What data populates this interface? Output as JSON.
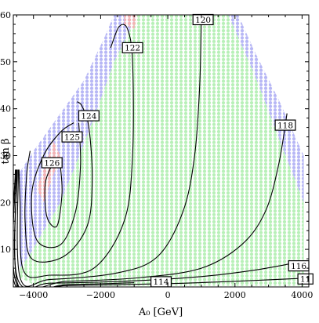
{
  "chart_data": {
    "type": "contour",
    "title": "",
    "xlabel": "A₀ [GeV]",
    "ylabel": "tan β",
    "xlim": [
      -4600,
      4200
    ],
    "ylim": [
      2,
      60
    ],
    "x_ticks": [
      -4000,
      -2000,
      0,
      2000,
      4000
    ],
    "y_ticks": [
      10,
      20,
      30,
      40,
      50,
      60
    ],
    "x_tick_labels": [
      "−4000",
      "−2000",
      "0",
      "2000",
      "4000"
    ],
    "y_tick_labels": [
      "10",
      "20",
      "30",
      "40",
      "50",
      "60"
    ],
    "colors": {
      "allowed": "#b8f0b8",
      "excluded_blue": "#b7b7f5",
      "excluded_red": "#f4b4b4",
      "contour": "#000000"
    },
    "regions": {
      "allowed_band": [
        [
          -4400,
          4
        ],
        [
          -4000,
          2.5
        ],
        [
          -2000,
          2.2
        ],
        [
          0,
          2.2
        ],
        [
          2000,
          2.2
        ],
        [
          4050,
          2.2
        ],
        [
          4050,
          20
        ],
        [
          3400,
          32
        ],
        [
          2600,
          47
        ],
        [
          1800,
          60
        ],
        [
          -900,
          60
        ],
        [
          -1600,
          50
        ],
        [
          -2200,
          38
        ],
        [
          -2800,
          27
        ],
        [
          -3200,
          20
        ],
        [
          -3700,
          14
        ],
        [
          -4100,
          9
        ],
        [
          -4400,
          6
        ]
      ],
      "blue_upper_left": [
        [
          -1600,
          60
        ],
        [
          -900,
          60
        ],
        [
          -1600,
          50
        ],
        [
          -2200,
          38
        ],
        [
          -2800,
          27
        ],
        [
          -3200,
          20
        ],
        [
          -3700,
          14
        ],
        [
          -4100,
          9
        ],
        [
          -4400,
          6
        ],
        [
          -4450,
          26
        ],
        [
          -4000,
          31
        ],
        [
          -3300,
          38
        ],
        [
          -2500,
          46
        ],
        [
          -1900,
          55
        ]
      ],
      "blue_right": [
        [
          1800,
          60
        ],
        [
          2600,
          47
        ],
        [
          3400,
          32
        ],
        [
          4050,
          20
        ],
        [
          4050,
          30
        ],
        [
          3300,
          42
        ],
        [
          2600,
          52
        ],
        [
          2100,
          60
        ]
      ],
      "red_top": [
        [
          -1300,
          60
        ],
        [
          -900,
          60
        ],
        [
          -1000,
          57
        ],
        [
          -1300,
          58
        ]
      ],
      "red_left": [
        [
          -3400,
          33
        ],
        [
          -3200,
          30
        ],
        [
          -3700,
          20
        ],
        [
          -3900,
          23
        ]
      ]
    },
    "contours": [
      {
        "label": "126",
        "label_pos": [
          -3450,
          28.5
        ],
        "points": [
          [
            -3200,
            28
          ],
          [
            -3150,
            22
          ],
          [
            -3300,
            15
          ],
          [
            -3600,
            17
          ],
          [
            -3650,
            24
          ],
          [
            -3450,
            28
          ]
        ]
      },
      {
        "label": "125",
        "label_pos": [
          -2850,
          34
        ],
        "points": [
          [
            -2650,
            37
          ],
          [
            -2600,
            28
          ],
          [
            -2750,
            18
          ],
          [
            -3200,
            11
          ],
          [
            -3900,
            12
          ],
          [
            -4050,
            22
          ],
          [
            -3700,
            30
          ],
          [
            -3200,
            35
          ],
          [
            -2800,
            37
          ]
        ]
      },
      {
        "label": "124",
        "label_pos": [
          -2350,
          38.5
        ],
        "points": [
          [
            -2700,
            41.5
          ],
          [
            -2550,
            40.5
          ],
          [
            -2350,
            36
          ],
          [
            -2250,
            25
          ],
          [
            -2400,
            15
          ],
          [
            -3100,
            8.5
          ],
          [
            -4050,
            8
          ],
          [
            -4250,
            16
          ],
          [
            -4200,
            26
          ],
          [
            -4100,
            31
          ]
        ]
      },
      {
        "label": "122",
        "label_pos": [
          -1050,
          53
        ],
        "points": [
          [
            -1700,
            53
          ],
          [
            -1450,
            57.5
          ],
          [
            -1200,
            57
          ],
          [
            -1050,
            50
          ],
          [
            -1050,
            30
          ],
          [
            -1300,
            16
          ],
          [
            -2200,
            6
          ],
          [
            -3500,
            4.5
          ],
          [
            -4300,
            5.5
          ],
          [
            -4400,
            20
          ],
          [
            -4430,
            27
          ]
        ]
      },
      {
        "label": "120",
        "label_pos": [
          1050,
          59
        ],
        "points": [
          [
            1000,
            60
          ],
          [
            950,
            45
          ],
          [
            800,
            30
          ],
          [
            450,
            18
          ],
          [
            -300,
            8.5
          ],
          [
            -1500,
            5
          ],
          [
            -3500,
            3.6
          ],
          [
            -4400,
            4
          ],
          [
            -4450,
            27
          ]
        ]
      },
      {
        "label": "118",
        "label_pos": [
          3500,
          36.5
        ],
        "points": [
          [
            3550,
            39
          ],
          [
            3300,
            28
          ],
          [
            2900,
            18
          ],
          [
            2200,
            11
          ],
          [
            1000,
            6
          ],
          [
            -800,
            4
          ],
          [
            -3000,
            3.2
          ],
          [
            -4450,
            3.3
          ],
          [
            -4480,
            27
          ]
        ]
      },
      {
        "label": "116",
        "label_pos": [
          3900,
          6.5
        ],
        "points": [
          [
            3700,
            7
          ],
          [
            2500,
            5.5
          ],
          [
            1000,
            4.2
          ],
          [
            -1000,
            3.3
          ],
          [
            -3500,
            2.8
          ],
          [
            -4480,
            2.9
          ],
          [
            -4500,
            27
          ]
        ]
      },
      {
        "label": "114",
        "label_pos": [
          -200,
          3.1
        ],
        "points": [
          [
            -1000,
            2.9
          ],
          [
            -3000,
            2.5
          ],
          [
            -4500,
            2.6
          ],
          [
            -4520,
            27
          ]
        ]
      },
      {
        "label": "11",
        "label_pos": [
          4100,
          3.7
        ],
        "points": [
          [
            3900,
            3.8
          ],
          [
            2000,
            3.2
          ],
          [
            0,
            2.7
          ],
          [
            -3000,
            2.3
          ],
          [
            -4540,
            2.3
          ],
          [
            -4540,
            27
          ]
        ]
      }
    ]
  }
}
